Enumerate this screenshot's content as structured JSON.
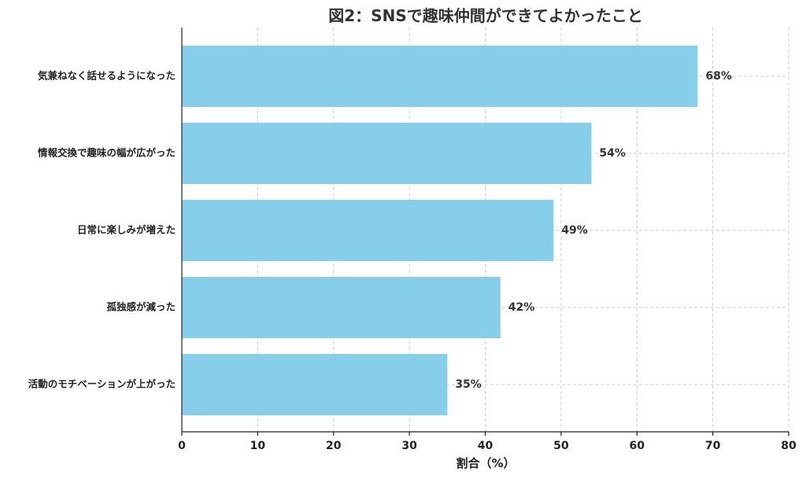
{
  "chart_data": {
    "type": "bar",
    "orientation": "horizontal",
    "title": "図2：SNSで趣味仲間ができてよかったこと",
    "xlabel": "割合（%）",
    "ylabel": "",
    "xlim": [
      0,
      80
    ],
    "xticks": [
      0,
      10,
      20,
      30,
      40,
      50,
      60,
      70,
      80
    ],
    "grid": true,
    "bar_color": "#87CEEB",
    "categories": [
      "気兼ねなく話せるようになった",
      "情報交換で趣味の幅が広がった",
      "日常に楽しみが増えた",
      "孤独感が減った",
      "活動のモチベーションが上がった"
    ],
    "values": [
      68,
      54,
      49,
      42,
      35
    ],
    "value_labels": [
      "68%",
      "54%",
      "49%",
      "42%",
      "35%"
    ]
  }
}
